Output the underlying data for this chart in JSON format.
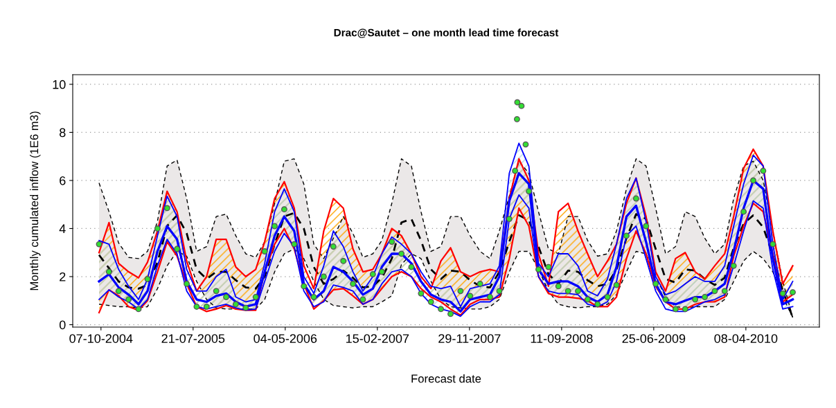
{
  "chart_data": {
    "type": "line",
    "title": "Drac@Sautet – one month lead time forecast",
    "xlabel": "Forecast date",
    "ylabel": "Monthly cumulated inflow (1E6 m3)",
    "x": [
      "2004-10",
      "2004-11",
      "2004-12",
      "2005-01",
      "2005-02",
      "2005-03",
      "2005-04",
      "2005-05",
      "2005-06",
      "2005-07",
      "2005-08",
      "2005-09",
      "2005-10",
      "2005-11",
      "2005-12",
      "2006-01",
      "2006-02",
      "2006-03",
      "2006-04",
      "2006-05",
      "2006-06",
      "2006-07",
      "2006-08",
      "2006-09",
      "2006-10",
      "2006-11",
      "2006-12",
      "2007-01",
      "2007-02",
      "2007-03",
      "2007-04",
      "2007-05",
      "2007-06",
      "2007-07",
      "2007-08",
      "2007-09",
      "2007-10",
      "2007-11",
      "2007-12",
      "2008-01",
      "2008-02",
      "2008-03",
      "2008-04",
      "2008-05",
      "2008-06",
      "2008-07",
      "2008-08",
      "2008-09",
      "2008-10",
      "2008-11",
      "2008-12",
      "2009-01",
      "2009-02",
      "2009-03",
      "2009-04",
      "2009-05",
      "2009-06",
      "2009-07",
      "2009-08",
      "2009-09",
      "2009-10",
      "2009-11",
      "2009-12",
      "2010-01",
      "2010-02",
      "2010-03",
      "2010-04",
      "2010-05",
      "2010-06",
      "2010-07",
      "2010-08",
      "2010-09"
    ],
    "series": [
      {
        "color": "#000000",
        "line_style": "dashed",
        "values": [
          2.9,
          2.35,
          1.8,
          1.55,
          1.5,
          1.65,
          2.6,
          4.1,
          4.55,
          3.8,
          2.3,
          1.9,
          2.2,
          2.2,
          1.85,
          1.55,
          1.5,
          2.0,
          3.35,
          4.5,
          4.65,
          4.0,
          2.4,
          1.7,
          1.9,
          2.25,
          1.95,
          1.55,
          1.6,
          1.95,
          2.75,
          4.25,
          4.4,
          3.5,
          2.3,
          1.9,
          2.25,
          2.2,
          1.85,
          1.6,
          1.55,
          2.2,
          3.45,
          4.55,
          4.35,
          3.25,
          2.1,
          1.7,
          2.25,
          2.2,
          1.85,
          1.6,
          1.7,
          2.3,
          3.6,
          4.6,
          4.4,
          3.15,
          1.9,
          1.75,
          2.3,
          2.25,
          1.9,
          1.65,
          1.95,
          3.2,
          4.2,
          4.55,
          4.05,
          2.9,
          1.4,
          0.3
        ],
        "upper": [
          5.9,
          4.7,
          3.4,
          2.8,
          2.75,
          3.05,
          4.3,
          6.6,
          6.85,
          5.25,
          3.05,
          3.25,
          4.5,
          4.6,
          3.7,
          2.95,
          2.8,
          3.45,
          5.05,
          6.8,
          6.9,
          5.85,
          3.35,
          2.75,
          3.6,
          4.5,
          3.8,
          2.8,
          2.95,
          3.5,
          5.05,
          6.9,
          6.6,
          4.7,
          3.05,
          3.25,
          4.5,
          4.5,
          3.7,
          3.05,
          2.75,
          3.9,
          5.35,
          6.8,
          6.3,
          4.7,
          3.15,
          2.95,
          4.5,
          4.5,
          3.5,
          2.85,
          2.95,
          3.9,
          5.65,
          6.9,
          6.6,
          4.85,
          2.95,
          3.25,
          4.7,
          4.5,
          3.6,
          2.95,
          3.35,
          5.25,
          6.6,
          6.8,
          6.0,
          3.9,
          1.8,
          0.3
        ],
        "lower": [
          0.85,
          0.8,
          0.75,
          0.75,
          0.7,
          0.75,
          1.5,
          2.45,
          3.05,
          2.85,
          1.8,
          1.05,
          0.7,
          0.65,
          0.65,
          0.65,
          0.65,
          1.05,
          2.2,
          2.95,
          3.15,
          2.75,
          1.8,
          1.05,
          0.8,
          0.75,
          0.7,
          0.75,
          0.75,
          0.95,
          1.2,
          2.5,
          2.95,
          2.75,
          1.8,
          1.05,
          0.75,
          0.7,
          0.65,
          0.65,
          0.75,
          1.05,
          2.2,
          3.05,
          3.05,
          2.3,
          1.4,
          0.85,
          0.75,
          0.7,
          0.75,
          0.75,
          0.85,
          1.25,
          2.2,
          3.05,
          2.95,
          2.0,
          1.15,
          0.75,
          0.7,
          0.75,
          0.75,
          0.75,
          1.05,
          1.8,
          2.65,
          3.05,
          2.75,
          2.2,
          1.15,
          0.3
        ]
      },
      {
        "color": "#000000",
        "line_style": "dashed",
        "values": [
          5.9,
          4.7,
          3.4,
          2.8,
          2.75,
          3.05,
          4.3,
          6.6,
          6.85,
          5.25,
          3.05,
          3.25,
          4.5,
          4.6,
          3.7,
          2.95,
          2.8,
          3.45,
          5.05,
          6.8,
          6.9,
          5.85,
          3.35,
          2.75,
          3.6,
          4.5,
          3.8,
          2.8,
          2.95,
          3.5,
          5.05,
          6.9,
          6.6,
          4.7,
          3.05,
          3.25,
          4.5,
          4.5,
          3.7,
          3.05,
          2.75,
          3.9,
          5.35,
          6.8,
          6.3,
          4.7,
          3.15,
          2.95,
          4.5,
          4.5,
          3.5,
          2.85,
          2.95,
          3.9,
          5.65,
          6.9,
          6.6,
          4.85,
          2.95,
          3.25,
          4.7,
          4.5,
          3.6,
          2.95,
          3.35,
          5.25,
          6.6,
          6.8,
          6.0,
          3.9,
          1.8,
          0.3
        ]
      },
      {
        "color": "#000000",
        "line_style": "dashed",
        "values": [
          0.85,
          0.8,
          0.75,
          0.75,
          0.7,
          0.75,
          1.5,
          2.45,
          3.05,
          2.85,
          1.8,
          1.05,
          0.7,
          0.65,
          0.65,
          0.65,
          0.65,
          1.05,
          2.2,
          2.95,
          3.15,
          2.75,
          1.8,
          1.05,
          0.8,
          0.75,
          0.7,
          0.75,
          0.75,
          0.95,
          1.2,
          2.5,
          2.95,
          2.75,
          1.8,
          1.05,
          0.75,
          0.7,
          0.65,
          0.65,
          0.75,
          1.05,
          2.2,
          3.05,
          3.05,
          2.3,
          1.4,
          0.85,
          0.75,
          0.7,
          0.75,
          0.75,
          0.85,
          1.25,
          2.2,
          3.05,
          2.95,
          2.0,
          1.15,
          0.75,
          0.7,
          0.75,
          0.75,
          0.75,
          1.05,
          1.8,
          2.65,
          3.05,
          2.75,
          2.2,
          1.15,
          0.3
        ]
      },
      {
        "color": "#ff0000",
        "line_style": "solid",
        "values": [
          null,
          null,
          null,
          null,
          null,
          null,
          null,
          null,
          null,
          null,
          null,
          null,
          null,
          null,
          null,
          null,
          null,
          null,
          null,
          null,
          null,
          null,
          null,
          null,
          null,
          null,
          null,
          null,
          null,
          null,
          null,
          null,
          null,
          null,
          null,
          null,
          null,
          null,
          null,
          null,
          null,
          null,
          null,
          null,
          null,
          null,
          null,
          null,
          null,
          null,
          null,
          null,
          null,
          null,
          null,
          null,
          null,
          null,
          null,
          null,
          null,
          null,
          null,
          null,
          null,
          null,
          null,
          null,
          null,
          null,
          null,
          null
        ],
        "upper": [
          3.0,
          4.25,
          2.55,
          2.2,
          1.95,
          2.6,
          3.9,
          5.55,
          4.7,
          2.65,
          1.4,
          2.0,
          3.55,
          3.55,
          2.4,
          2.0,
          2.3,
          3.45,
          5.25,
          5.95,
          4.85,
          2.45,
          1.5,
          3.9,
          5.25,
          4.85,
          3.15,
          2.2,
          2.3,
          2.95,
          4.0,
          3.7,
          2.95,
          2.0,
          1.5,
          2.65,
          3.2,
          2.2,
          2.0,
          2.2,
          2.3,
          2.2,
          5.25,
          6.9,
          6.0,
          2.95,
          1.6,
          4.7,
          5.05,
          3.9,
          2.95,
          2.0,
          2.65,
          3.35,
          5.05,
          6.1,
          4.5,
          2.2,
          1.4,
          2.75,
          3.0,
          2.2,
          1.9,
          2.45,
          2.95,
          4.5,
          6.5,
          7.3,
          6.6,
          3.9,
          1.7,
          2.45
        ],
        "lower": [
          0.5,
          1.45,
          1.2,
          0.75,
          0.6,
          1.0,
          2.2,
          3.45,
          2.85,
          1.7,
          0.75,
          0.55,
          0.65,
          0.8,
          0.65,
          0.6,
          0.6,
          2.2,
          3.35,
          4.0,
          3.15,
          1.7,
          0.65,
          1.0,
          1.45,
          1.5,
          1.2,
          0.85,
          1.05,
          1.5,
          2.0,
          2.2,
          2.0,
          1.5,
          1.15,
          0.95,
          0.65,
          0.4,
          0.85,
          1.05,
          1.05,
          1.15,
          2.75,
          4.85,
          4.1,
          2.0,
          1.3,
          1.15,
          1.15,
          1.1,
          1.0,
          0.75,
          0.75,
          1.15,
          2.75,
          3.9,
          2.95,
          1.6,
          0.95,
          0.65,
          0.65,
          0.85,
          0.95,
          0.95,
          1.15,
          2.85,
          4.1,
          5.05,
          4.7,
          2.95,
          0.95,
          1.25
        ]
      },
      {
        "color": "#ff0000",
        "line_style": "solid",
        "values": [
          3.0,
          4.25,
          2.55,
          2.2,
          1.95,
          2.6,
          3.9,
          5.55,
          4.7,
          2.65,
          1.4,
          2.0,
          3.55,
          3.55,
          2.4,
          2.0,
          2.3,
          3.45,
          5.25,
          5.95,
          4.85,
          2.45,
          1.5,
          3.9,
          5.25,
          4.85,
          3.15,
          2.2,
          2.3,
          2.95,
          4.0,
          3.7,
          2.95,
          2.0,
          1.5,
          2.65,
          3.2,
          2.2,
          2.0,
          2.2,
          2.3,
          2.2,
          5.25,
          6.9,
          6.0,
          2.95,
          1.6,
          4.7,
          5.05,
          3.9,
          2.95,
          2.0,
          2.65,
          3.35,
          5.05,
          6.1,
          4.5,
          2.2,
          1.4,
          2.75,
          3.0,
          2.2,
          1.9,
          2.45,
          2.95,
          4.5,
          6.5,
          7.3,
          6.6,
          3.9,
          1.7,
          2.45
        ]
      },
      {
        "color": "#ff0000",
        "line_style": "solid",
        "values": [
          0.5,
          1.45,
          1.2,
          0.75,
          0.6,
          1.0,
          2.2,
          3.45,
          2.85,
          1.7,
          0.75,
          0.55,
          0.65,
          0.8,
          0.65,
          0.6,
          0.6,
          2.2,
          3.35,
          4.0,
          3.15,
          1.7,
          0.65,
          1.0,
          1.45,
          1.5,
          1.2,
          0.85,
          1.05,
          1.5,
          2.0,
          2.2,
          2.0,
          1.5,
          1.15,
          0.95,
          0.65,
          0.4,
          0.85,
          1.05,
          1.05,
          1.15,
          2.75,
          4.85,
          4.1,
          2.0,
          1.3,
          1.15,
          1.15,
          1.1,
          1.0,
          0.75,
          0.75,
          1.15,
          2.75,
          3.9,
          2.95,
          1.6,
          0.95,
          0.65,
          0.65,
          0.85,
          0.95,
          0.95,
          1.15,
          2.85,
          4.1,
          5.05,
          4.7,
          2.95,
          0.95,
          1.25
        ]
      },
      {
        "color": "#0000ff",
        "line_style": "solid",
        "values": [
          1.8,
          2.1,
          1.55,
          1.25,
          0.85,
          1.4,
          3.05,
          4.1,
          3.55,
          1.8,
          1.05,
          0.95,
          1.2,
          1.3,
          0.95,
          0.75,
          0.85,
          2.2,
          3.7,
          4.5,
          3.9,
          1.7,
          1.05,
          1.4,
          2.4,
          2.2,
          1.8,
          1.25,
          1.5,
          2.4,
          2.95,
          2.95,
          2.55,
          1.8,
          1.25,
          1.05,
          0.95,
          0.55,
          1.05,
          1.15,
          1.25,
          2.0,
          5.15,
          6.3,
          5.85,
          2.3,
          1.7,
          1.8,
          1.8,
          1.6,
          1.15,
          0.95,
          1.25,
          2.4,
          4.5,
          4.95,
          3.45,
          1.7,
          0.95,
          0.85,
          1.0,
          1.15,
          1.15,
          1.4,
          1.7,
          3.05,
          4.85,
          6.0,
          5.65,
          2.75,
          0.85,
          1.05
        ],
        "upper": [
          3.5,
          3.35,
          2.3,
          1.6,
          1.05,
          1.9,
          3.7,
          5.35,
          4.5,
          2.3,
          1.4,
          1.4,
          2.0,
          2.3,
          1.15,
          0.95,
          1.05,
          2.55,
          4.7,
          5.65,
          4.7,
          2.0,
          1.3,
          2.45,
          3.9,
          3.25,
          2.2,
          1.4,
          2.0,
          2.95,
          3.65,
          3.35,
          2.95,
          2.2,
          1.6,
          1.5,
          1.6,
          0.75,
          1.5,
          1.6,
          1.7,
          2.45,
          6.3,
          7.55,
          6.6,
          2.55,
          2.0,
          2.95,
          2.95,
          2.45,
          1.4,
          1.2,
          1.9,
          3.35,
          5.25,
          6.1,
          4.3,
          2.0,
          1.25,
          1.4,
          1.7,
          2.0,
          1.8,
          1.8,
          2.45,
          4.1,
          5.85,
          7.05,
          6.6,
          3.35,
          1.05,
          1.8
        ],
        "lower": [
          1.05,
          1.45,
          1.15,
          0.95,
          0.65,
          1.05,
          2.45,
          3.55,
          2.95,
          1.4,
          0.75,
          0.65,
          0.75,
          0.85,
          0.7,
          0.6,
          0.65,
          1.8,
          3.05,
          3.8,
          3.25,
          1.4,
          0.75,
          0.95,
          1.65,
          1.55,
          1.4,
          0.85,
          1.05,
          1.7,
          2.2,
          2.3,
          2.0,
          1.3,
          0.85,
          0.65,
          0.55,
          0.35,
          0.75,
          0.95,
          0.95,
          1.25,
          4.4,
          5.4,
          4.85,
          2.0,
          1.4,
          1.3,
          1.3,
          1.25,
          0.85,
          0.75,
          0.95,
          1.8,
          3.7,
          4.1,
          2.75,
          1.4,
          0.65,
          0.55,
          0.55,
          0.75,
          0.95,
          1.05,
          1.25,
          2.45,
          3.9,
          5.15,
          4.85,
          2.3,
          0.65,
          0.75
        ]
      },
      {
        "color": "#0000ff",
        "line_style": "solid",
        "values": [
          3.5,
          3.35,
          2.3,
          1.6,
          1.05,
          1.9,
          3.7,
          5.35,
          4.5,
          2.3,
          1.4,
          1.4,
          2.0,
          2.3,
          1.15,
          0.95,
          1.05,
          2.55,
          4.7,
          5.65,
          4.7,
          2.0,
          1.3,
          2.45,
          3.9,
          3.25,
          2.2,
          1.4,
          2.0,
          2.95,
          3.65,
          3.35,
          2.95,
          2.2,
          1.6,
          1.5,
          1.6,
          0.75,
          1.5,
          1.6,
          1.7,
          2.45,
          6.3,
          7.55,
          6.6,
          2.55,
          2.0,
          2.95,
          2.95,
          2.45,
          1.4,
          1.2,
          1.9,
          3.35,
          5.25,
          6.1,
          4.3,
          2.0,
          1.25,
          1.4,
          1.7,
          2.0,
          1.8,
          1.8,
          2.45,
          4.1,
          5.85,
          7.05,
          6.6,
          3.35,
          1.05,
          1.8
        ]
      },
      {
        "color": "#0000ff",
        "line_style": "solid",
        "values": [
          1.05,
          1.45,
          1.15,
          0.95,
          0.65,
          1.05,
          2.45,
          3.55,
          2.95,
          1.4,
          0.75,
          0.65,
          0.75,
          0.85,
          0.7,
          0.6,
          0.65,
          1.8,
          3.05,
          3.8,
          3.25,
          1.4,
          0.75,
          0.95,
          1.65,
          1.55,
          1.4,
          0.85,
          1.05,
          1.7,
          2.2,
          2.3,
          2.0,
          1.3,
          0.85,
          0.65,
          0.55,
          0.35,
          0.75,
          0.95,
          0.95,
          1.25,
          4.4,
          5.4,
          4.85,
          2.0,
          1.4,
          1.3,
          1.3,
          1.25,
          0.85,
          0.75,
          0.95,
          1.8,
          3.7,
          4.1,
          2.75,
          1.4,
          0.65,
          0.55,
          0.55,
          0.75,
          0.95,
          1.05,
          1.25,
          2.45,
          3.9,
          5.15,
          4.85,
          2.3,
          0.65,
          0.75
        ]
      },
      {
        "type": "scatter",
        "color": "#33dd33",
        "marker": "circle",
        "x": [
          "2004-10",
          "2004-11",
          "2004-12",
          "2005-01",
          "2005-02",
          "2005-03",
          "2005-04",
          "2005-05",
          "2005-06",
          "2005-07",
          "2005-08",
          "2005-09",
          "2005-10",
          "2005-11",
          "2005-12",
          "2006-01",
          "2006-02",
          "2006-03",
          "2006-04",
          "2006-05",
          "2006-06",
          "2006-07",
          "2006-08",
          "2006-09",
          "2006-10",
          "2006-11",
          "2006-12",
          "2007-01",
          "2007-02",
          "2007-03",
          "2007-04",
          "2007-05",
          "2007-06",
          "2007-07",
          "2007-08",
          "2007-09",
          "2007-10",
          "2007-11",
          "2007-12",
          "2008-01",
          "2008-02",
          "2008-03",
          "2008-04",
          "2008-04-19",
          "2008-04-25",
          "2008-04-26",
          "2008-05-09",
          "2008-05-22",
          "2008-06",
          "2008-07",
          "2008-08",
          "2008-09",
          "2008-10",
          "2008-11",
          "2008-12",
          "2009-01",
          "2009-02",
          "2009-03",
          "2009-04",
          "2009-05",
          "2009-06",
          "2009-07",
          "2009-08",
          "2009-09",
          "2009-10",
          "2009-11",
          "2009-12",
          "2010-01",
          "2010-02",
          "2010-03",
          "2010-04",
          "2010-05",
          "2010-06",
          "2010-07",
          "2010-08",
          "2010-09"
        ],
        "values": [
          3.35,
          2.2,
          1.4,
          1.05,
          0.65,
          1.9,
          4.0,
          4.85,
          3.15,
          1.7,
          0.75,
          0.75,
          1.4,
          1.15,
          0.85,
          0.7,
          1.15,
          3.05,
          4.1,
          4.8,
          3.35,
          1.6,
          1.15,
          2.0,
          3.25,
          2.65,
          1.7,
          1.05,
          2.1,
          2.2,
          3.45,
          2.95,
          2.4,
          1.3,
          0.95,
          0.65,
          0.45,
          1.4,
          1.2,
          1.7,
          1.15,
          1.4,
          4.4,
          6.4,
          8.55,
          9.25,
          9.1,
          7.5,
          5.55,
          2.3,
          2.4,
          1.6,
          1.4,
          1.4,
          1.05,
          0.85,
          1.15,
          1.65,
          3.7,
          5.25,
          4.1,
          1.7,
          1.05,
          0.65,
          0.65,
          1.05,
          1.15,
          1.4,
          1.4,
          2.45,
          4.7,
          6.0,
          6.4,
          3.35,
          1.3,
          1.35
        ]
      }
    ],
    "xlim": [
      "2004-07-11",
      "2010-11-23"
    ],
    "xticks": [
      {
        "value": "2004-10-07",
        "label": "07-10-2004"
      },
      {
        "value": "2005-07-21",
        "label": "21-07-2005"
      },
      {
        "value": "2006-05-04",
        "label": "04-05-2006"
      },
      {
        "value": "2007-02-15",
        "label": "15-02-2007"
      },
      {
        "value": "2007-11-29",
        "label": "29-11-2007"
      },
      {
        "value": "2008-09-11",
        "label": "11-09-2008"
      },
      {
        "value": "2009-06-25",
        "label": "25-06-2009"
      },
      {
        "value": "2010-04-08",
        "label": "08-04-2010"
      }
    ],
    "ylim": [
      -0.1,
      10.4
    ],
    "yticks": [
      0,
      2,
      4,
      6,
      8,
      10
    ],
    "grid": "y"
  }
}
